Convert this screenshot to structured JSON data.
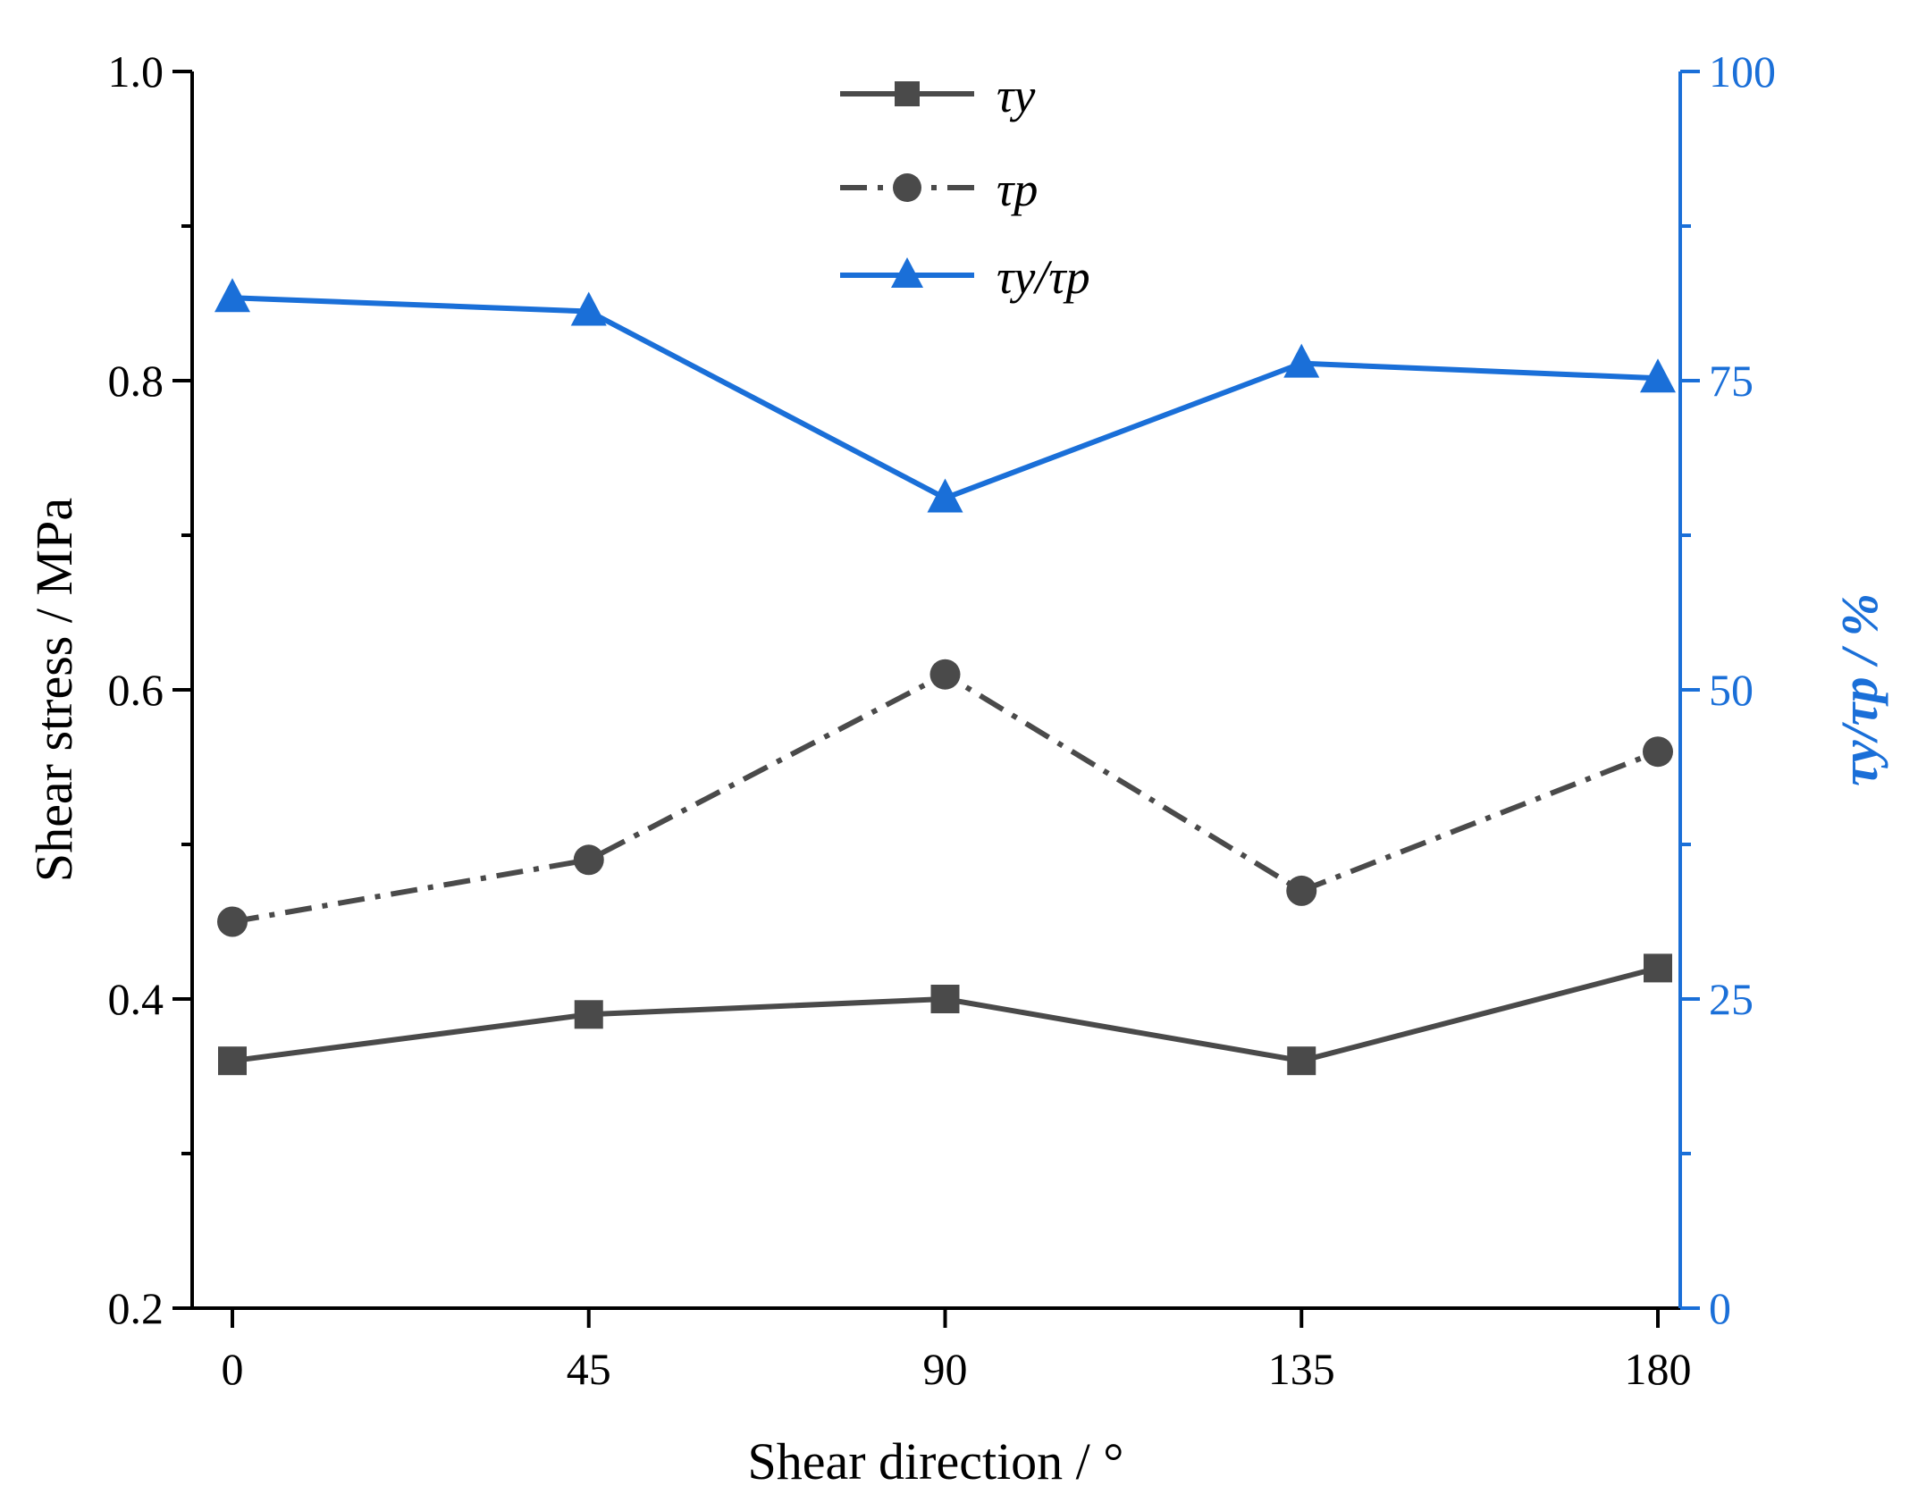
{
  "colors": {
    "left_axis": "#000000",
    "right_axis": "#1a6fd8",
    "series_dark": "#4a4a4a",
    "series_blue": "#1a6fd8"
  },
  "chart_data": {
    "type": "line",
    "x": [
      0,
      45,
      90,
      135,
      180
    ],
    "xlabel": "Shear direction / °",
    "ylabel_left": "Shear stress / MPa",
    "ylabel_right": "τy/τp / %",
    "xlim": [
      -5,
      185
    ],
    "ylim_left": [
      0.2,
      1.0
    ],
    "ylim_right": [
      0,
      100
    ],
    "x_ticks": [
      "0",
      "45",
      "90",
      "135",
      "180"
    ],
    "y_left_ticks": [
      "0.2",
      "0.4",
      "0.6",
      "0.8",
      "1.0"
    ],
    "y_right_ticks": [
      "0",
      "25",
      "50",
      "75",
      "100"
    ],
    "legend_position": "top-center",
    "series": [
      {
        "name": "τy",
        "axis": "left",
        "marker": "square",
        "line": "solid",
        "values": [
          0.36,
          0.39,
          0.4,
          0.36,
          0.42
        ]
      },
      {
        "name": "τp",
        "axis": "left",
        "marker": "circle",
        "line": "dash-dot",
        "values": [
          0.45,
          0.49,
          0.61,
          0.47,
          0.56
        ]
      },
      {
        "name": "τy/τp",
        "axis": "right",
        "marker": "triangle",
        "line": "solid",
        "values": [
          81.7,
          80.6,
          65.5,
          76.4,
          75.2
        ]
      }
    ]
  }
}
